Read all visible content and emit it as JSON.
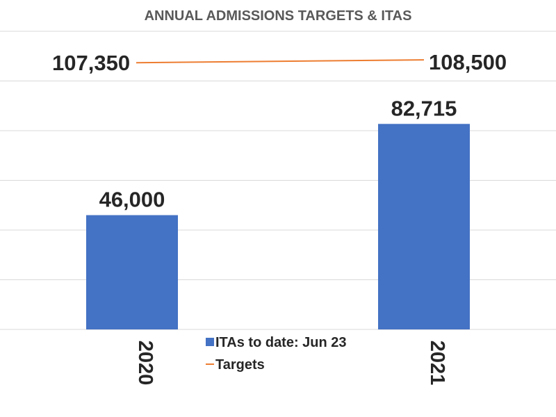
{
  "chart_data": {
    "type": "bar",
    "title": "ANNUAL ADMISSIONS TARGETS & ITAS",
    "categories": [
      "2020",
      "2021"
    ],
    "series": [
      {
        "name": "ITAs to date: Jun 23",
        "kind": "bar",
        "values": [
          46000,
          82715
        ],
        "labels": [
          "46,000",
          "82,715"
        ]
      },
      {
        "name": "Targets",
        "kind": "line",
        "values": [
          107350,
          108500
        ],
        "labels": [
          "107,350",
          "108,500"
        ]
      }
    ],
    "ylim": [
      0,
      120000
    ],
    "grid": true,
    "legend": "bottom-center",
    "colors": {
      "bars": "#4472C4",
      "line": "#ED7D31"
    }
  }
}
